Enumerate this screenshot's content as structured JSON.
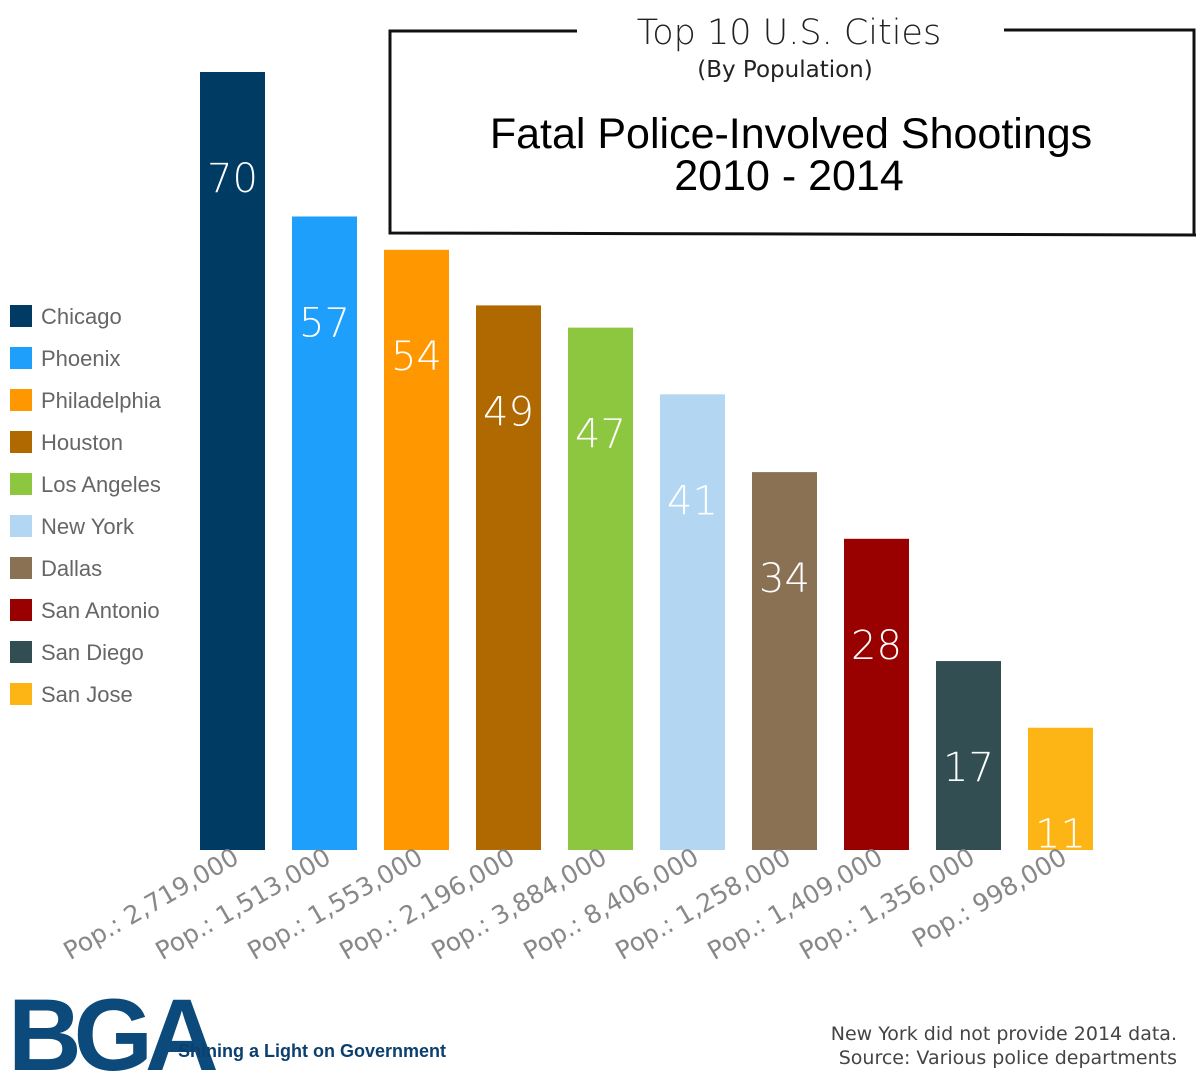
{
  "chart_data": {
    "type": "bar",
    "title_top": "Top 10 U.S. Cities",
    "title_sub": "(By Population)",
    "title_main_line1": "Fatal Police-Involved Shootings",
    "title_main_line2": "2010 - 2014",
    "categories": [
      "Pop.: 2,719,000",
      "Pop.: 1,513,000",
      "Pop.: 1,553,000",
      "Pop.: 2,196,000",
      "Pop.: 3,884,000",
      "Pop.: 8,406,000",
      "Pop.: 1,258,000",
      "Pop.: 1,409,000",
      "Pop.: 1,356,000",
      "Pop.: 998,000"
    ],
    "cities": [
      "Chicago",
      "Phoenix",
      "Philadelphia",
      "Houston",
      "Los Angeles",
      "New York",
      "Dallas",
      "San Antonio",
      "San Diego",
      "San Jose"
    ],
    "values": [
      70,
      57,
      54,
      49,
      47,
      41,
      34,
      28,
      17,
      11
    ],
    "colors": [
      "#003b64",
      "#1e9ffc",
      "#ff9800",
      "#b06800",
      "#8dc63f",
      "#b3d7f2",
      "#8a7153",
      "#990000",
      "#324e53",
      "#fdb515"
    ],
    "ylim": [
      0,
      70
    ],
    "grid": false,
    "legend_position": "left"
  },
  "footer": {
    "note_line1": "New York did not provide 2014 data.",
    "note_line2": "Source: Various police departments"
  },
  "logo": {
    "text": "BGA",
    "tagline": "Shining a Light on Government"
  }
}
